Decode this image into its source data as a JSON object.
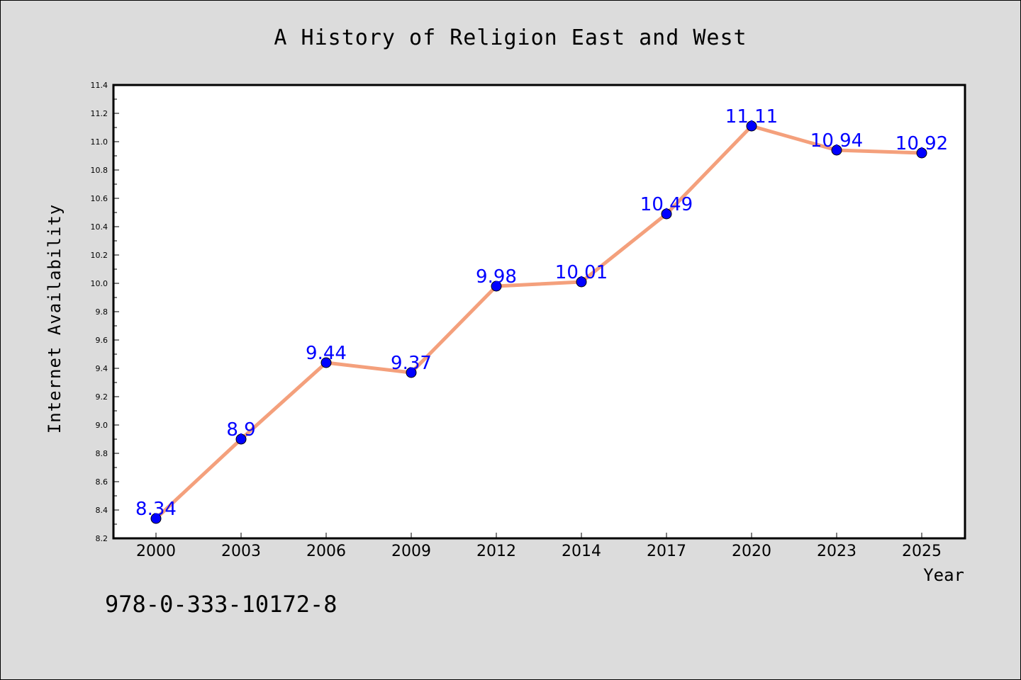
{
  "chart_data": {
    "type": "line",
    "title": "A History of Religion East and West",
    "xlabel": "Year",
    "ylabel": "Internet Availability",
    "categories": [
      "2000",
      "2003",
      "2006",
      "2009",
      "2012",
      "2014",
      "2017",
      "2020",
      "2023",
      "2025"
    ],
    "values": [
      8.34,
      8.9,
      9.44,
      9.37,
      9.98,
      10.01,
      10.49,
      11.11,
      10.94,
      10.92
    ],
    "data_labels": [
      "8.34",
      "8.9",
      "9.44",
      "9.37",
      "9.98",
      "10.01",
      "10.49",
      "11.11",
      "10.94",
      "10.92"
    ],
    "ylim": [
      8.2,
      11.4
    ],
    "yticks": [
      "8.2",
      "8.4",
      "8.6",
      "8.8",
      "9.0",
      "9.2",
      "9.4",
      "9.6",
      "9.8",
      "10.0",
      "10.2",
      "10.4",
      "10.6",
      "10.8",
      "11.0",
      "11.2",
      "11.4"
    ],
    "grid": false,
    "line_color": "#f4a07c",
    "marker_color": "#0000ff",
    "label_color": "#0000ff"
  },
  "annotation": {
    "isbn": "978-0-333-10172-8"
  }
}
